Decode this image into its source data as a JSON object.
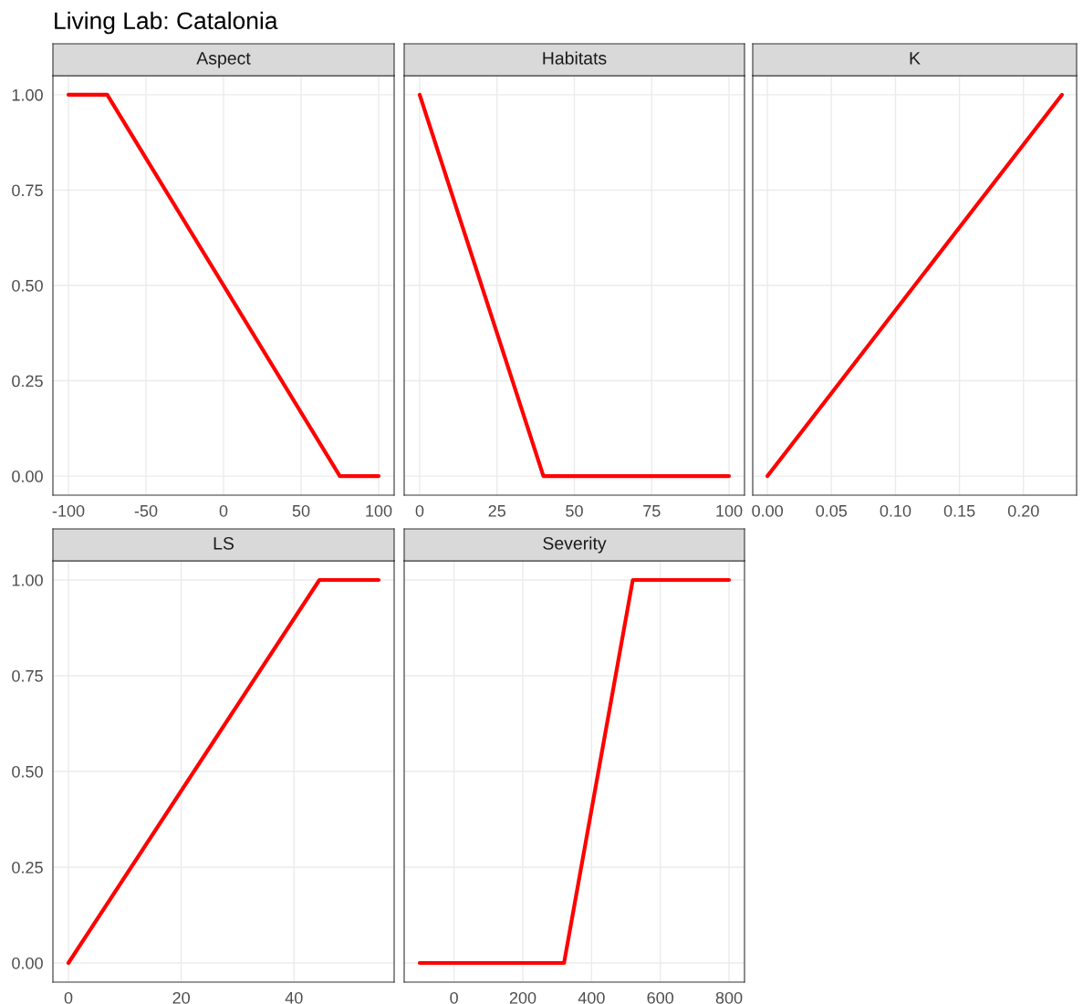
{
  "chart_data": [
    {
      "type": "line",
      "title": "Aspect",
      "annotations": [
        "Living Lab: Catalonia"
      ],
      "x": [
        -100,
        -75,
        75,
        100
      ],
      "series": [
        {
          "color": "#ff0000",
          "values": [
            1,
            1,
            0,
            0
          ]
        }
      ],
      "xlim": [
        -110,
        110
      ],
      "xticks": [
        {
          "value": -100,
          "label": "-100"
        },
        {
          "value": -50,
          "label": "-50"
        },
        0,
        50,
        100
      ],
      "ylim": [
        -0.05,
        1.05
      ],
      "yticks": [
        {
          "value": 0,
          "label": "0.00"
        },
        {
          "value": 0.25,
          "label": "0.25"
        },
        {
          "value": 0.5,
          "label": "0.50"
        },
        {
          "value": 0.75,
          "label": "0.75"
        },
        {
          "value": 1,
          "label": "1.00"
        }
      ],
      "grid": true
    },
    {
      "type": "line",
      "title": "Habitats",
      "x": [
        0,
        40,
        100
      ],
      "series": [
        {
          "color": "#ff0000",
          "values": [
            1,
            0,
            0
          ]
        }
      ],
      "xlim": [
        -5,
        105
      ],
      "xticks": [
        0,
        25,
        50,
        75,
        100
      ],
      "ylim": [
        -0.05,
        1.05
      ],
      "yticks": [
        {
          "value": 0,
          "label": null
        },
        {
          "value": 0.25,
          "label": null
        },
        {
          "value": 0.5,
          "label": null
        },
        {
          "value": 0.75,
          "label": null
        },
        {
          "value": 1,
          "label": null
        }
      ],
      "tick_labels": "x",
      "grid": true
    },
    {
      "type": "line",
      "title": "K",
      "x": [
        0,
        0.23
      ],
      "series": [
        {
          "color": "#ff0000",
          "values": [
            0,
            1
          ]
        }
      ],
      "xlim": [
        -0.0115,
        0.2415
      ],
      "xticks": [
        {
          "value": 0,
          "label": "0.00"
        },
        {
          "value": 0.05,
          "label": "0.05"
        },
        {
          "value": 0.1,
          "label": "0.10"
        },
        {
          "value": 0.15,
          "label": "0.15"
        },
        {
          "value": 0.2,
          "label": "0.20"
        }
      ],
      "ylim": [
        -0.05,
        1.05
      ],
      "yticks": [
        {
          "value": 0,
          "label": null
        },
        {
          "value": 0.25,
          "label": null
        },
        {
          "value": 0.5,
          "label": null
        },
        {
          "value": 0.75,
          "label": null
        },
        {
          "value": 1,
          "label": null
        }
      ],
      "tick_labels": "x",
      "grid": true
    },
    {
      "type": "line",
      "title": "LS",
      "x": [
        0,
        44.5,
        55
      ],
      "series": [
        {
          "color": "#ff0000",
          "values": [
            0,
            1,
            1
          ]
        }
      ],
      "xlim": [
        -2.75,
        57.75
      ],
      "xticks": [
        0,
        20,
        40
      ],
      "ylim": [
        -0.05,
        1.05
      ],
      "yticks": [
        {
          "value": 0,
          "label": "0.00"
        },
        {
          "value": 0.25,
          "label": "0.25"
        },
        {
          "value": 0.5,
          "label": "0.50"
        },
        {
          "value": 0.75,
          "label": "0.75"
        },
        {
          "value": 1,
          "label": "1.00"
        }
      ],
      "grid": true
    },
    {
      "type": "line",
      "title": "Severity",
      "x": [
        -100,
        320,
        520,
        800
      ],
      "series": [
        {
          "color": "#ff0000",
          "values": [
            0,
            0,
            1,
            1
          ]
        }
      ],
      "xlim": [
        -145,
        845
      ],
      "xticks": [
        0,
        200,
        400,
        600,
        800
      ],
      "ylim": [
        -0.05,
        1.05
      ],
      "yticks": [
        {
          "value": 0,
          "label": null
        },
        {
          "value": 0.25,
          "label": null
        },
        {
          "value": 0.5,
          "label": null
        },
        {
          "value": 0.75,
          "label": null
        },
        {
          "value": 1,
          "label": null
        }
      ],
      "tick_labels": "x",
      "grid": true
    }
  ]
}
